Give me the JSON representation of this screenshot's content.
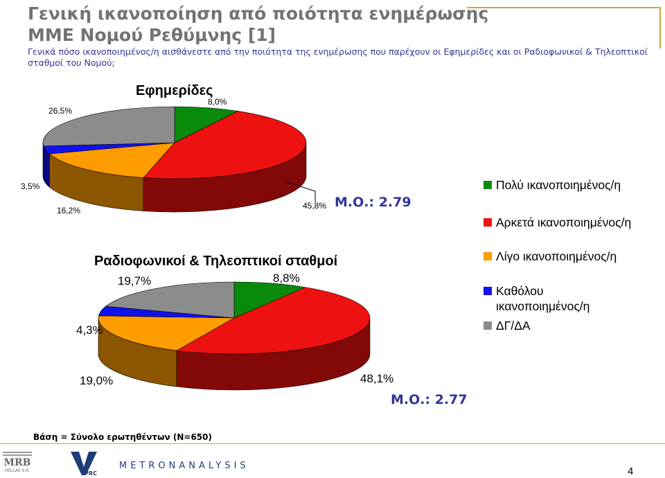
{
  "header": {
    "title_line1": "Γενική ικανοποίηση από ποιότητα ενημέρωσης",
    "title_line2": "ΜΜΕ Νομού Ρεθύμνης [1]",
    "question": "Γενικά πόσο ικανοποιημένος/η αισθάνεστε από την ποιότητα της ενημέρωσης που παρέχουν οι Εφημερίδες και οι Ραδιοφωνικοί & Τηλεοπτικοί σταθμοί του Νομού;"
  },
  "colors": {
    "very_satisfied": "#0a8a0a",
    "fairly_satisfied": "#ee1111",
    "little_satisfied": "#ff9c00",
    "not_at_all": "#1111ee",
    "dk_na": "#8c8c8c"
  },
  "legend": [
    {
      "label": "Πολύ ικανοποιημένος/η",
      "color": "#0a8a0a",
      "icon": "square-swatch"
    },
    {
      "label": "Αρκετά ικανοποιημένος/η",
      "color": "#ee1111",
      "icon": "square-swatch"
    },
    {
      "label": "Λίγο ικανοποιημένος/η",
      "color": "#ff9c00",
      "icon": "square-swatch"
    },
    {
      "label": "Καθόλου ικανοποιημένος/η",
      "color": "#1111ee",
      "icon": "square-swatch"
    },
    {
      "label": "ΔΓ/ΔΑ",
      "color": "#8c8c8c",
      "icon": "square-swatch"
    }
  ],
  "chart_data": [
    {
      "type": "pie",
      "title": "Εφημερίδες",
      "categories": [
        "Πολύ ικανοποιημένος/η",
        "Αρκετά ικανοποιημένος/η",
        "Λίγο ικανοποιημένος/η",
        "Καθόλου ικανοποιημένος/η",
        "ΔΓ/ΔΑ"
      ],
      "values": [
        8.0,
        45.8,
        16.2,
        3.5,
        26.5
      ],
      "value_labels": [
        "8,0%",
        "45,8%",
        "16,2%",
        "3,5%",
        "26,5%"
      ],
      "mean_label": "Μ.Ο.: 2.79",
      "legend_position": "right"
    },
    {
      "type": "pie",
      "title": "Ραδιοφωνικοί & Τηλεοπτικοί σταθμοί",
      "categories": [
        "Πολύ ικανοποιημένος/η",
        "Αρκετά ικανοποιημένος/η",
        "Λίγο ικανοποιημένος/η",
        "Καθόλου ικανοποιημένος/η",
        "ΔΓ/ΔΑ"
      ],
      "values": [
        8.8,
        48.1,
        19.0,
        4.3,
        19.7
      ],
      "value_labels": [
        "8,8%",
        "48,1%",
        "19,0%",
        "4,3%",
        "19,7%"
      ],
      "mean_label": "Μ.Ο.: 2.77",
      "legend_position": "right"
    }
  ],
  "footer": {
    "base_note": "Βάση = Σύνολο ερωτηθέντων (Ν=650)",
    "logo_mrb_text": "MRB",
    "logo_mrb_sub": "HELLAS S.A.",
    "logo_vprc_text": "VPRC",
    "logo_metron_text": "METRONANALYSIS",
    "page_number": "4"
  }
}
